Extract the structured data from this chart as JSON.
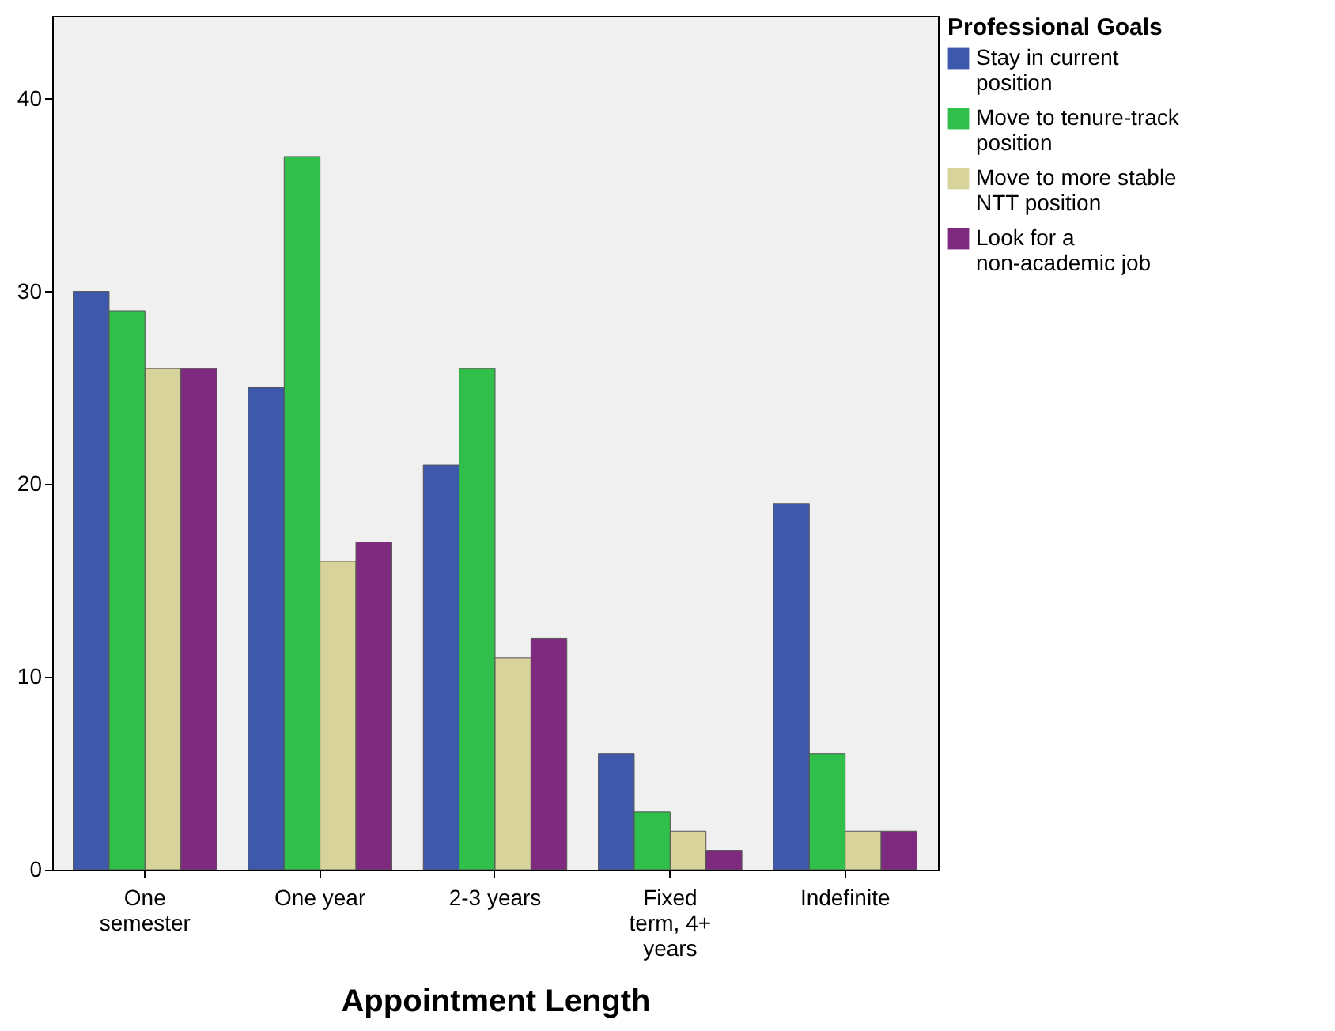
{
  "chart_data": {
    "type": "bar",
    "xlabel": "Appointment Length",
    "legend_title": "Professional Goals",
    "legend": "top right",
    "grid": false,
    "categories": [
      "One semester",
      "One year",
      "2-3 years",
      "Fixed term, 4+ years",
      "Indefinite"
    ],
    "ylim": [
      0,
      44.3
    ],
    "yticks": [
      0,
      10,
      20,
      30,
      40
    ],
    "series": [
      {
        "name": "Stay in current position",
        "color": "#3e58ac",
        "values": [
          30,
          25,
          21,
          6,
          19
        ]
      },
      {
        "name": "Move to tenure-track position",
        "color": "#2fbf4a",
        "values": [
          29,
          37,
          26,
          3,
          6
        ]
      },
      {
        "name": "Move to more stable NTT position",
        "color": "#d8d39b",
        "values": [
          26,
          16,
          11,
          2,
          2
        ]
      },
      {
        "name": "Look for a non-academic job",
        "color": "#7e2a7e",
        "values": [
          26,
          17,
          12,
          1,
          2
        ]
      }
    ]
  }
}
